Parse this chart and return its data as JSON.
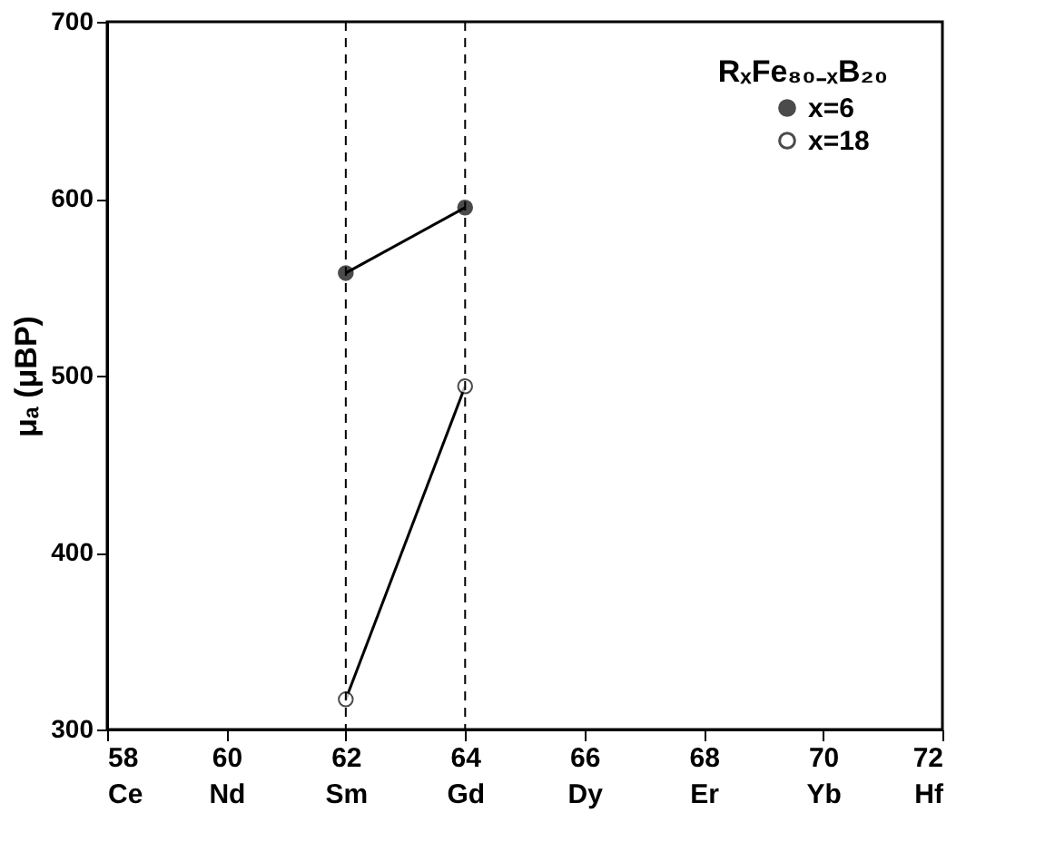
{
  "chart_data": {
    "type": "line",
    "ylabel": "μₐ (μBP)",
    "annotations": [
      "RₓFe₈₀₋ₓB₂₀"
    ],
    "xlim": [
      58,
      72
    ],
    "ylim": [
      300,
      700
    ],
    "xticks": [
      {
        "value": 58,
        "label": "58\nCe"
      },
      {
        "value": 60,
        "label": "60\nNd"
      },
      {
        "value": 62,
        "label": "62\nSm"
      },
      {
        "value": 64,
        "label": "64\nGd"
      },
      {
        "value": 66,
        "label": "66\nDy"
      },
      {
        "value": 68,
        "label": "68\nEr"
      },
      {
        "value": 70,
        "label": "70\nYb"
      },
      {
        "value": 72,
        "label": "72\nHf"
      }
    ],
    "yticks": [
      300,
      400,
      500,
      600,
      700
    ],
    "x": [
      62,
      64
    ],
    "series": [
      {
        "name": "x=6",
        "color": "#000000",
        "values": [
          558,
          595
        ]
      },
      {
        "name": "x=18",
        "color": "#000000",
        "values": [
          317,
          494
        ]
      }
    ],
    "ref_lines": [
      {
        "axis": "x",
        "value": 62,
        "line_style": "dashed",
        "color": "#000000"
      },
      {
        "axis": "x",
        "value": 64,
        "line_style": "dashed",
        "color": "#000000"
      }
    ],
    "marker": "circle",
    "line_style": "solid",
    "grid": false,
    "legend": "top right"
  }
}
